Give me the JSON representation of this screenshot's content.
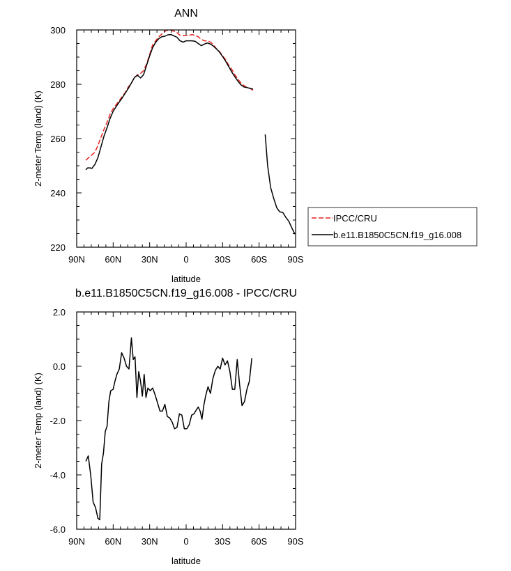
{
  "chart_data": [
    {
      "type": "line",
      "title": "ANN",
      "xlabel": "latitude",
      "ylabel": "2-meter Temp (land) (K)",
      "xlim": [
        90,
        -90
      ],
      "ylim": [
        220,
        300
      ],
      "x_ticks": [
        90,
        60,
        30,
        0,
        -30,
        -60,
        -90
      ],
      "x_tick_labels": [
        "90N",
        "60N",
        "30N",
        "0",
        "30S",
        "60S",
        "90S"
      ],
      "y_ticks": [
        220,
        240,
        260,
        280,
        300
      ],
      "y_tick_labels": [
        "220",
        "240",
        "260",
        "280",
        "300"
      ],
      "grid": false,
      "legend_position": "right",
      "series": [
        {
          "name": "IPCC/CRU",
          "color": "#e8211e",
          "dash": "dashed",
          "segments": [
            [
              [
                82.5,
                252
              ],
              [
                80,
                253
              ],
              [
                77.5,
                254
              ],
              [
                75,
                255
              ],
              [
                72.5,
                257.5
              ],
              [
                70,
                260.5
              ],
              [
                67.5,
                263.5
              ],
              [
                65,
                266
              ],
              [
                62.5,
                269
              ],
              [
                60,
                271
              ],
              [
                57.5,
                272.5
              ],
              [
                55,
                274
              ],
              [
                52.5,
                275.5
              ],
              [
                50,
                277
              ],
              [
                47.5,
                279
              ],
              [
                45,
                280.5
              ],
              [
                42.5,
                282.5
              ],
              [
                40,
                283.5
              ],
              [
                37.5,
                284
              ],
              [
                35,
                285
              ],
              [
                32.5,
                287.5
              ],
              [
                30,
                291
              ],
              [
                27.5,
                294.5
              ],
              [
                25,
                296
              ],
              [
                22.5,
                297.5
              ],
              [
                20,
                298.5
              ],
              [
                17.5,
                299.5
              ],
              [
                15,
                300
              ],
              [
                12.5,
                300
              ],
              [
                10,
                299.5
              ],
              [
                7.5,
                299
              ],
              [
                5,
                298
              ],
              [
                2.5,
                298
              ],
              [
                0,
                298
              ],
              [
                -2.5,
                298
              ],
              [
                -5,
                298.3
              ],
              [
                -7.5,
                298
              ],
              [
                -10,
                297.5
              ],
              [
                -12.5,
                296.5
              ],
              [
                -15,
                296
              ],
              [
                -17.5,
                296
              ],
              [
                -20,
                295.5
              ],
              [
                -22.5,
                294.5
              ],
              [
                -25,
                293
              ],
              [
                -27.5,
                292
              ],
              [
                -30,
                290.5
              ],
              [
                -32.5,
                289
              ],
              [
                -35,
                287
              ],
              [
                -37.5,
                285.5
              ],
              [
                -40,
                283.5
              ],
              [
                -42.5,
                282
              ],
              [
                -45,
                280.5
              ],
              [
                -47.5,
                279.5
              ],
              [
                -50,
                278.8
              ],
              [
                -52.5,
                278.5
              ],
              [
                -55,
                277.8
              ]
            ]
          ]
        },
        {
          "name": "b.e11.B1850C5CN.f19_g16.008",
          "color": "#000000",
          "dash": "solid",
          "segments": [
            [
              [
                82.5,
                248.5
              ],
              [
                81,
                249.2
              ],
              [
                79,
                249.2
              ],
              [
                77.5,
                249
              ],
              [
                75,
                250.5
              ],
              [
                72.5,
                253
              ],
              [
                70,
                257
              ],
              [
                67.5,
                261
              ],
              [
                65,
                264
              ],
              [
                62.5,
                267.5
              ],
              [
                60,
                270
              ],
              [
                57.5,
                271.8
              ],
              [
                55,
                273.5
              ],
              [
                52.5,
                275
              ],
              [
                50,
                276.8
              ],
              [
                47.5,
                278.5
              ],
              [
                45,
                280.5
              ],
              [
                42.5,
                282.5
              ],
              [
                40,
                283.3
              ],
              [
                37.5,
                282.3
              ],
              [
                35,
                283.5
              ],
              [
                32.5,
                287
              ],
              [
                30,
                290.5
              ],
              [
                27.5,
                293.5
              ],
              [
                25,
                295.5
              ],
              [
                22.5,
                296.8
              ],
              [
                20,
                297.5
              ],
              [
                17.5,
                297.7
              ],
              [
                15,
                298.2
              ],
              [
                12.5,
                298.3
              ],
              [
                10,
                297.8
              ],
              [
                7.5,
                297.3
              ],
              [
                5,
                296
              ],
              [
                2.5,
                295.5
              ],
              [
                0,
                296
              ],
              [
                -2.5,
                296
              ],
              [
                -5,
                296
              ],
              [
                -7.5,
                295.8
              ],
              [
                -10,
                295
              ],
              [
                -12.5,
                294.2
              ],
              [
                -15,
                294.8
              ],
              [
                -17.5,
                295.2
              ],
              [
                -20,
                294.8
              ],
              [
                -22.5,
                294
              ],
              [
                -25,
                293
              ],
              [
                -27.5,
                291.8
              ],
              [
                -30,
                290.2
              ],
              [
                -32.5,
                288.5
              ],
              [
                -35,
                286.5
              ],
              [
                -37.5,
                284.5
              ],
              [
                -40,
                282.8
              ],
              [
                -42.5,
                281.2
              ],
              [
                -45,
                279.8
              ],
              [
                -47.5,
                279
              ],
              [
                -50,
                278.8
              ],
              [
                -52.5,
                278.5
              ],
              [
                -55,
                278.2
              ]
            ],
            [
              [
                -65,
                261.5
              ],
              [
                -67,
                250
              ],
              [
                -69.5,
                242
              ],
              [
                -72,
                238
              ],
              [
                -74.5,
                234.5
              ],
              [
                -77,
                233
              ],
              [
                -79.5,
                232.8
              ],
              [
                -82,
                231
              ],
              [
                -84.5,
                229.5
              ],
              [
                -87,
                227
              ],
              [
                -89.5,
                224.8
              ]
            ]
          ]
        }
      ]
    },
    {
      "type": "line",
      "title": "b.e11.B1850C5CN.f19_g16.008 - IPCC/CRU",
      "xlabel": "latitude",
      "ylabel": "2-meter Temp (land) (K)",
      "xlim": [
        90,
        -90
      ],
      "ylim": [
        -6,
        2
      ],
      "x_ticks": [
        90,
        60,
        30,
        0,
        -30,
        -60,
        -90
      ],
      "x_tick_labels": [
        "90N",
        "60N",
        "30N",
        "0",
        "30S",
        "60S",
        "90S"
      ],
      "y_ticks": [
        -6,
        -4,
        -2,
        0,
        2
      ],
      "y_tick_labels": [
        "-6.0",
        "-4.0",
        "-2.0",
        "0.0",
        "2.0"
      ],
      "grid": false,
      "series": [
        {
          "color": "#000000",
          "dash": "solid",
          "segments": [
            [
              [
                82.5,
                -3.5
              ],
              [
                80.5,
                -3.3
              ],
              [
                78.5,
                -4.0
              ],
              [
                76.5,
                -5.0
              ],
              [
                74.5,
                -5.2
              ],
              [
                72.5,
                -5.6
              ],
              [
                71,
                -5.65
              ],
              [
                69.5,
                -3.6
              ],
              [
                68,
                -3.2
              ],
              [
                66.5,
                -2.4
              ],
              [
                65,
                -2.2
              ],
              [
                63.5,
                -1.3
              ],
              [
                62,
                -0.9
              ],
              [
                60,
                -0.85
              ],
              [
                58.5,
                -0.55
              ],
              [
                57,
                -0.3
              ],
              [
                55,
                -0.1
              ],
              [
                53,
                0.5
              ],
              [
                51,
                0.3
              ],
              [
                49,
                0.0
              ],
              [
                47,
                -0.1
              ],
              [
                45,
                1.05
              ],
              [
                43.5,
                0.25
              ],
              [
                42,
                0.35
              ],
              [
                40.5,
                -1.15
              ],
              [
                39,
                -0.2
              ],
              [
                37.5,
                -0.55
              ],
              [
                36,
                -1.1
              ],
              [
                34.5,
                -0.3
              ],
              [
                33,
                -1.15
              ],
              [
                31.5,
                -0.8
              ],
              [
                29.5,
                -0.9
              ],
              [
                27.5,
                -0.8
              ],
              [
                25.5,
                -1.05
              ],
              [
                23.5,
                -1.35
              ],
              [
                21.5,
                -1.65
              ],
              [
                19.5,
                -1.65
              ],
              [
                17.5,
                -1.4
              ],
              [
                15.5,
                -1.85
              ],
              [
                13.5,
                -1.9
              ],
              [
                11.5,
                -2.05
              ],
              [
                9.5,
                -2.3
              ],
              [
                7.5,
                -2.25
              ],
              [
                5.5,
                -1.75
              ],
              [
                3.5,
                -1.8
              ],
              [
                1.5,
                -2.3
              ],
              [
                -0.5,
                -2.3
              ],
              [
                -2.5,
                -2.15
              ],
              [
                -4.5,
                -1.8
              ],
              [
                -6.5,
                -1.75
              ],
              [
                -8.5,
                -1.6
              ],
              [
                -10,
                -1.5
              ],
              [
                -11.5,
                -1.65
              ],
              [
                -13,
                -1.95
              ],
              [
                -14.5,
                -1.45
              ],
              [
                -16,
                -1.1
              ],
              [
                -18,
                -0.75
              ],
              [
                -20,
                -1.0
              ],
              [
                -22,
                -0.45
              ],
              [
                -24,
                -0.15
              ],
              [
                -26,
                0.0
              ],
              [
                -28,
                -0.1
              ],
              [
                -30,
                0.3
              ],
              [
                -32,
                0.05
              ],
              [
                -34,
                0.2
              ],
              [
                -36,
                -0.2
              ],
              [
                -38,
                -0.85
              ],
              [
                -40,
                -0.85
              ],
              [
                -42,
                0.25
              ],
              [
                -44,
                -0.7
              ],
              [
                -46,
                -1.45
              ],
              [
                -48,
                -1.3
              ],
              [
                -50,
                -0.85
              ],
              [
                -52,
                -0.55
              ],
              [
                -54,
                0.3
              ]
            ]
          ]
        }
      ]
    }
  ]
}
